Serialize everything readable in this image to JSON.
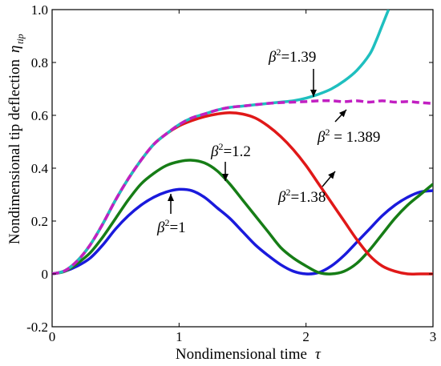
{
  "chart_data": {
    "type": "line",
    "title": "",
    "xlabel": {
      "text": "Nondimensional time",
      "symbol": "τ"
    },
    "ylabel": {
      "text": "Nondimensional tip deflection",
      "symbol": "η",
      "subscript": "tip"
    },
    "xlim": [
      0,
      3
    ],
    "ylim": [
      -0.2,
      1.0
    ],
    "xticks": [
      "0",
      "1",
      "2",
      "3"
    ],
    "yticks": [
      "-0.2",
      "0",
      "0.2",
      "0.4",
      "0.6",
      "0.8",
      "1.0"
    ],
    "xtick_values": [
      0,
      1,
      2,
      3
    ],
    "ytick_values": [
      -0.2,
      0,
      0.2,
      0.4,
      0.6,
      0.8,
      1.0
    ],
    "grid": false,
    "legend": "none",
    "series": [
      {
        "name": "β²=1",
        "color": "#1a1adc",
        "style": "solid",
        "x": [
          0,
          0.1,
          0.2,
          0.3,
          0.4,
          0.5,
          0.6,
          0.7,
          0.8,
          0.9,
          1.0,
          1.1,
          1.2,
          1.3,
          1.4,
          1.5,
          1.6,
          1.7,
          1.8,
          1.9,
          2.0,
          2.1,
          2.2,
          2.3,
          2.4,
          2.5,
          2.6,
          2.7,
          2.8,
          2.9,
          3.0
        ],
        "y": [
          0,
          0.01,
          0.03,
          0.06,
          0.11,
          0.17,
          0.22,
          0.26,
          0.29,
          0.31,
          0.32,
          0.315,
          0.29,
          0.25,
          0.21,
          0.16,
          0.11,
          0.07,
          0.035,
          0.01,
          0.0,
          0.005,
          0.03,
          0.07,
          0.12,
          0.17,
          0.22,
          0.26,
          0.29,
          0.31,
          0.315
        ]
      },
      {
        "name": "β²=1.2",
        "color": "#167d16",
        "style": "solid",
        "x": [
          0,
          0.1,
          0.2,
          0.3,
          0.4,
          0.5,
          0.6,
          0.7,
          0.8,
          0.9,
          1.0,
          1.1,
          1.2,
          1.3,
          1.4,
          1.5,
          1.6,
          1.7,
          1.8,
          1.9,
          2.0,
          2.1,
          2.2,
          2.3,
          2.4,
          2.5,
          2.6,
          2.7,
          2.8,
          2.9,
          3.0
        ],
        "y": [
          0,
          0.01,
          0.04,
          0.08,
          0.14,
          0.21,
          0.28,
          0.34,
          0.38,
          0.41,
          0.425,
          0.43,
          0.42,
          0.39,
          0.34,
          0.28,
          0.22,
          0.16,
          0.1,
          0.06,
          0.03,
          0.005,
          0.0,
          0.01,
          0.04,
          0.09,
          0.15,
          0.21,
          0.26,
          0.3,
          0.34
        ]
      },
      {
        "name": "β²=1.38",
        "color": "#e01818",
        "style": "solid",
        "x": [
          0,
          0.1,
          0.2,
          0.3,
          0.4,
          0.5,
          0.6,
          0.7,
          0.8,
          0.9,
          1.0,
          1.1,
          1.2,
          1.3,
          1.4,
          1.5,
          1.6,
          1.7,
          1.8,
          1.9,
          2.0,
          2.1,
          2.2,
          2.3,
          2.4,
          2.5,
          2.6,
          2.7,
          2.8,
          2.9,
          3.0
        ],
        "y": [
          0,
          0.012,
          0.05,
          0.11,
          0.19,
          0.28,
          0.36,
          0.43,
          0.49,
          0.53,
          0.56,
          0.58,
          0.595,
          0.605,
          0.61,
          0.605,
          0.59,
          0.56,
          0.52,
          0.47,
          0.41,
          0.34,
          0.27,
          0.2,
          0.13,
          0.07,
          0.03,
          0.01,
          0.0,
          0.0,
          0.0
        ]
      },
      {
        "name": "β²=1.39",
        "color": "#1fbfbf",
        "style": "solid",
        "x": [
          0,
          0.1,
          0.2,
          0.3,
          0.4,
          0.5,
          0.6,
          0.7,
          0.8,
          0.9,
          1.0,
          1.1,
          1.2,
          1.3,
          1.4,
          1.5,
          1.6,
          1.7,
          1.8,
          1.9,
          2.0,
          2.1,
          2.2,
          2.3,
          2.4,
          2.5,
          2.55,
          2.6,
          2.65
        ],
        "y": [
          0,
          0.012,
          0.05,
          0.11,
          0.19,
          0.28,
          0.36,
          0.43,
          0.49,
          0.53,
          0.565,
          0.59,
          0.605,
          0.62,
          0.63,
          0.635,
          0.64,
          0.645,
          0.65,
          0.655,
          0.665,
          0.68,
          0.7,
          0.73,
          0.77,
          0.83,
          0.88,
          0.94,
          1.0
        ]
      },
      {
        "name": "β²=1.389",
        "color": "#c21fc2",
        "style": "dashed",
        "x": [
          0,
          0.1,
          0.2,
          0.3,
          0.4,
          0.5,
          0.6,
          0.7,
          0.8,
          0.9,
          1.0,
          1.1,
          1.2,
          1.3,
          1.4,
          1.5,
          1.6,
          1.7,
          1.8,
          1.9,
          2.0,
          2.1,
          2.2,
          2.3,
          2.4,
          2.5,
          2.6,
          2.7,
          2.8,
          2.9,
          3.0
        ],
        "y": [
          0,
          0.012,
          0.05,
          0.11,
          0.19,
          0.28,
          0.36,
          0.43,
          0.49,
          0.53,
          0.565,
          0.59,
          0.605,
          0.62,
          0.63,
          0.635,
          0.64,
          0.645,
          0.648,
          0.65,
          0.652,
          0.655,
          0.655,
          0.652,
          0.655,
          0.65,
          0.655,
          0.65,
          0.652,
          0.648,
          0.645
        ]
      }
    ],
    "annotations": [
      {
        "label": "β²=1",
        "base": "β",
        "exp": "2",
        "rest": "=1"
      },
      {
        "label": "β²=1.2",
        "base": "β",
        "exp": "2",
        "rest": "=1.2"
      },
      {
        "label": "β²=1.38",
        "base": "β",
        "exp": "2",
        "rest": "=1.38"
      },
      {
        "label": "β²=1.39",
        "base": "β",
        "exp": "2",
        "rest": "=1.39"
      },
      {
        "label": "β² = 1.389",
        "base": "β",
        "exp": "2",
        "rest": " = 1.389"
      }
    ]
  }
}
